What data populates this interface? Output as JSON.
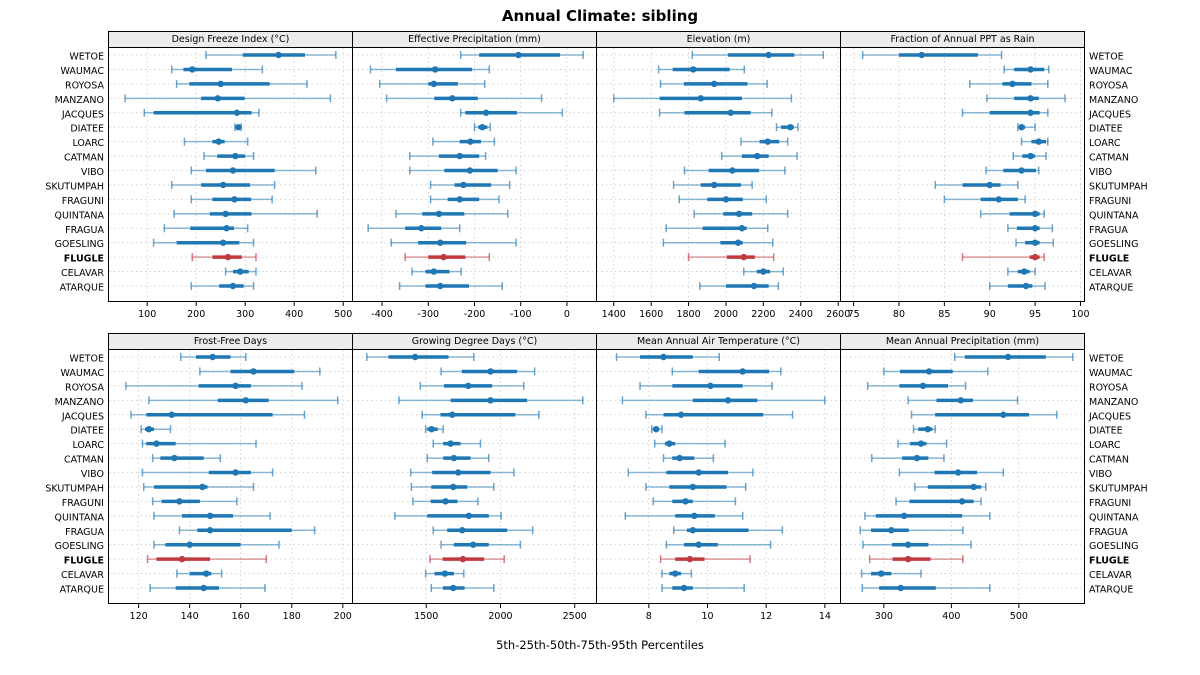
{
  "title": "Annual Climate: sibling",
  "caption": "5th-25th-50th-75th-95th Percentiles",
  "sites": [
    "WETOE",
    "WAUMAC",
    "ROYOSA",
    "MANZANO",
    "JACQUES",
    "DIATEE",
    "LOARC",
    "CATMAN",
    "VIBO",
    "SKUTUMPAH",
    "FRAGUNI",
    "QUINTANA",
    "FRAGUA",
    "GOESLING",
    "FLUGLE",
    "CELAVAR",
    "ATARQUE"
  ],
  "highlight_site": "FLUGLE",
  "percentiles": [
    5,
    25,
    50,
    75,
    95
  ],
  "colors": {
    "series": "#1f77b4",
    "highlight": "#c0393d",
    "strip_bg": "#ececec",
    "grid": "#c9c9c9",
    "border": "#000000"
  },
  "chart_data": [
    {
      "type": "dotplot-interval",
      "title": "Design Freeze Index (°C)",
      "xlim": [
        20,
        520
      ],
      "ticks": [
        100,
        200,
        300,
        400,
        500
      ],
      "rows": {
        "WETOE": [
          220,
          295,
          368,
          422,
          485
        ],
        "WAUMAC": [
          150,
          174,
          192,
          273,
          335
        ],
        "ROYOSA": [
          160,
          186,
          250,
          350,
          426
        ],
        "MANZANO": [
          55,
          210,
          244,
          299,
          474
        ],
        "JACQUES": [
          94,
          113,
          283,
          313,
          328
        ],
        "DIATEE": [
          279,
          283,
          286,
          289,
          292
        ],
        "LOARC": [
          176,
          233,
          246,
          258,
          305
        ],
        "CATMAN": [
          216,
          243,
          280,
          300,
          317
        ],
        "VIBO": [
          190,
          220,
          275,
          360,
          444
        ],
        "SKUTUMPAH": [
          150,
          210,
          255,
          310,
          360
        ],
        "FRAGUNI": [
          190,
          233,
          278,
          312,
          355
        ],
        "QUINTANA": [
          155,
          228,
          260,
          313,
          447
        ],
        "FRAGUA": [
          135,
          188,
          262,
          277,
          305
        ],
        "GOESLING": [
          113,
          160,
          255,
          288,
          317
        ],
        "FLUGLE": [
          192,
          233,
          265,
          293,
          322
        ],
        "CELAVAR": [
          260,
          275,
          290,
          307,
          322
        ],
        "ATARQUE": [
          190,
          247,
          275,
          297,
          317
        ]
      }
    },
    {
      "type": "dotplot-interval",
      "title": "Effective Precipitation (mm)",
      "xlim": [
        -465,
        65
      ],
      "ticks": [
        -400,
        -300,
        -200,
        -100,
        0
      ],
      "rows": {
        "WETOE": [
          -230,
          -190,
          -105,
          -15,
          35
        ],
        "WAUMAC": [
          -425,
          -370,
          -285,
          -205,
          -168
        ],
        "ROYOSA": [
          -405,
          -300,
          -288,
          -236,
          -178
        ],
        "MANZANO": [
          -390,
          -287,
          -248,
          -193,
          -55
        ],
        "JACQUES": [
          -230,
          -220,
          -175,
          -108,
          -10
        ],
        "DIATEE": [
          -200,
          -192,
          -183,
          -172,
          -166
        ],
        "LOARC": [
          -290,
          -232,
          -209,
          -186,
          -157
        ],
        "CATMAN": [
          -340,
          -277,
          -232,
          -190,
          -176
        ],
        "VIBO": [
          -340,
          -265,
          -210,
          -150,
          -110
        ],
        "SKUTUMPAH": [
          -295,
          -243,
          -224,
          -164,
          -124
        ],
        "FRAGUNI": [
          -295,
          -258,
          -232,
          -190,
          -147
        ],
        "QUINTANA": [
          -370,
          -313,
          -277,
          -222,
          -128
        ],
        "FRAGUA": [
          -430,
          -350,
          -315,
          -272,
          -232
        ],
        "GOESLING": [
          -380,
          -322,
          -274,
          -218,
          -110
        ],
        "FLUGLE": [
          -350,
          -300,
          -267,
          -220,
          -168
        ],
        "CELAVAR": [
          -335,
          -306,
          -288,
          -254,
          -229
        ],
        "ATARQUE": [
          -362,
          -306,
          -274,
          -212,
          -140
        ]
      }
    },
    {
      "type": "dotplot-interval",
      "title": "Elevation (m)",
      "xlim": [
        1305,
        2615
      ],
      "ticks": [
        1400,
        1600,
        1800,
        2000,
        2200,
        2400,
        2600
      ],
      "rows": {
        "WETOE": [
          1820,
          2010,
          2228,
          2365,
          2520
        ],
        "WAUMAC": [
          1640,
          1715,
          1825,
          2020,
          2098
        ],
        "ROYOSA": [
          1650,
          1775,
          1937,
          2115,
          2220
        ],
        "MANZANO": [
          1400,
          1645,
          1865,
          2085,
          2350
        ],
        "JACQUES": [
          1645,
          1778,
          2025,
          2132,
          2245
        ],
        "DIATEE": [
          2270,
          2295,
          2344,
          2363,
          2385
        ],
        "LOARC": [
          2080,
          2180,
          2223,
          2285,
          2330
        ],
        "CATMAN": [
          1977,
          2085,
          2167,
          2228,
          2380
        ],
        "VIBO": [
          1778,
          1907,
          2034,
          2176,
          2315
        ],
        "SKUTUMPAH": [
          1720,
          1865,
          1937,
          2080,
          2140
        ],
        "FRAGUNI": [
          1750,
          1900,
          2000,
          2090,
          2215
        ],
        "QUINTANA": [
          1830,
          1985,
          2070,
          2140,
          2330
        ],
        "FRAGUA": [
          1680,
          1875,
          2085,
          2110,
          2223
        ],
        "GOESLING": [
          1665,
          1970,
          2065,
          2090,
          2250
        ],
        "FLUGLE": [
          1800,
          2005,
          2095,
          2155,
          2255
        ],
        "CELAVAR": [
          2095,
          2165,
          2200,
          2236,
          2306
        ],
        "ATARQUE": [
          1860,
          2000,
          2150,
          2228,
          2280
        ]
      }
    },
    {
      "type": "dotplot-interval",
      "title": "Fraction of Annual PPT as Rain",
      "xlim": [
        73.5,
        100.5
      ],
      "ticks": [
        75,
        80,
        85,
        90,
        95,
        100
      ],
      "rows": {
        "WETOE": [
          76,
          80,
          82.5,
          88.7,
          91.3
        ],
        "WAUMAC": [
          91.6,
          92.7,
          94.5,
          96,
          96.5
        ],
        "ROYOSA": [
          87.8,
          91.4,
          92.5,
          94.6,
          96.4
        ],
        "MANZANO": [
          89.7,
          92.7,
          94.5,
          95.4,
          98.3
        ],
        "JACQUES": [
          87,
          90,
          94.5,
          95.5,
          96.4
        ],
        "DIATEE": [
          93.1,
          93.3,
          93.5,
          93.9,
          95
        ],
        "LOARC": [
          93.5,
          94.6,
          95.4,
          96.2,
          96.4
        ],
        "CATMAN": [
          92.6,
          93.6,
          94.5,
          95,
          96.2
        ],
        "VIBO": [
          89.6,
          91.5,
          93.5,
          95.1,
          95.4
        ],
        "SKUTUMPAH": [
          84,
          87,
          90,
          91.2,
          93.1
        ],
        "FRAGUNI": [
          85,
          89,
          91,
          93.1,
          93.9
        ],
        "QUINTANA": [
          89,
          92.2,
          95,
          95.5,
          96
        ],
        "FRAGUA": [
          92,
          93,
          95,
          95.5,
          96.9
        ],
        "GOESLING": [
          92.9,
          93.9,
          95,
          95.5,
          97
        ],
        "FLUGLE": [
          87,
          94.4,
          95,
          95.5,
          96
        ],
        "CELAVAR": [
          92,
          93.1,
          93.8,
          94.4,
          95
        ],
        "ATARQUE": [
          90,
          92,
          94,
          94.7,
          96.1
        ]
      }
    },
    {
      "type": "dotplot-interval",
      "title": "Frost-Free Days",
      "xlim": [
        108,
        204
      ],
      "ticks": [
        120,
        140,
        160,
        180,
        200
      ],
      "rows": {
        "WETOE": [
          136.5,
          142.5,
          149,
          156,
          162
        ],
        "WAUMAC": [
          144,
          156,
          165,
          181,
          191
        ],
        "ROYOSA": [
          115,
          143.5,
          158,
          164,
          184
        ],
        "MANZANO": [
          124,
          151,
          162,
          171,
          198
        ],
        "JACQUES": [
          117,
          123,
          133,
          172.5,
          185
        ],
        "DIATEE": [
          121,
          122.5,
          124,
          126,
          132.5
        ],
        "LOARC": [
          121.5,
          123,
          127,
          134.5,
          166
        ],
        "CATMAN": [
          125.5,
          128.5,
          134,
          145.5,
          152
        ],
        "VIBO": [
          121.5,
          147.5,
          158,
          164,
          172.5
        ],
        "SKUTUMPAH": [
          122,
          126,
          145,
          147,
          165
        ],
        "FRAGUNI": [
          125.5,
          129,
          136,
          144,
          158.5
        ],
        "QUINTANA": [
          126,
          137,
          148,
          157,
          171.5
        ],
        "FRAGUA": [
          136,
          143,
          148,
          180,
          189
        ],
        "GOESLING": [
          126,
          130.5,
          140,
          160,
          175
        ],
        "FLUGLE": [
          123.5,
          127,
          137,
          148,
          170
        ],
        "CELAVAR": [
          135,
          140,
          146.5,
          148.5,
          152.5
        ],
        "ATARQUE": [
          124.5,
          134.5,
          145.5,
          151.5,
          169.5
        ]
      }
    },
    {
      "type": "dotplot-interval",
      "title": "Growing Degree Days (°C)",
      "xlim": [
        1000,
        2650
      ],
      "ticks": [
        1500,
        2000,
        2500
      ],
      "rows": {
        "WETOE": [
          1100,
          1245,
          1425,
          1650,
          1820
        ],
        "WAUMAC": [
          1600,
          1740,
          1933,
          2112,
          2230
        ],
        "ROYOSA": [
          1460,
          1620,
          1783,
          1944,
          2157
        ],
        "MANZANO": [
          1316,
          1664,
          1933,
          2179,
          2554
        ],
        "JACQUES": [
          1473,
          1596,
          1675,
          2100,
          2258
        ],
        "DIATEE": [
          1496,
          1507,
          1536,
          1578,
          1614
        ],
        "LOARC": [
          1547,
          1614,
          1664,
          1731,
          1865
        ],
        "CATMAN": [
          1507,
          1614,
          1686,
          1798,
          1921
        ],
        "VIBO": [
          1395,
          1540,
          1715,
          1933,
          2090
        ],
        "SKUTUMPAH": [
          1400,
          1534,
          1682,
          1776,
          1955
        ],
        "FRAGUNI": [
          1410,
          1530,
          1630,
          1710,
          1848
        ],
        "QUINTANA": [
          1289,
          1507,
          1787,
          1921,
          2004
        ],
        "FRAGUA": [
          1547,
          1641,
          1742,
          2045,
          2217
        ],
        "GOESLING": [
          1600,
          1686,
          1816,
          1921,
          2134
        ],
        "FLUGLE": [
          1525,
          1610,
          1747,
          1890,
          2025
        ],
        "CELAVAR": [
          1496,
          1556,
          1626,
          1686,
          1753
        ],
        "ATARQUE": [
          1534,
          1612,
          1682,
          1758,
          1955
        ]
      }
    },
    {
      "type": "dotplot-interval",
      "title": "Mean Annual Air Temperature (°C)",
      "xlim": [
        6.2,
        14.55
      ],
      "ticks": [
        8,
        10,
        12,
        14
      ],
      "rows": {
        "WETOE": [
          6.9,
          7.7,
          8.5,
          9.5,
          10.4
        ],
        "WAUMAC": [
          8.8,
          9.7,
          11.2,
          12.1,
          12.5
        ],
        "ROYOSA": [
          7.7,
          8.8,
          10.1,
          11.2,
          12.2
        ],
        "MANZANO": [
          7.1,
          9.5,
          10.7,
          11.7,
          14
        ],
        "JACQUES": [
          7.9,
          8.5,
          9.1,
          11.9,
          12.9
        ],
        "DIATEE": [
          8.1,
          8.15,
          8.25,
          8.35,
          8.45
        ],
        "LOARC": [
          8.2,
          8.55,
          8.7,
          8.9,
          10.6
        ],
        "CATMAN": [
          8.5,
          8.8,
          9.05,
          9.55,
          10.2
        ],
        "VIBO": [
          7.3,
          8.6,
          9.7,
          10.7,
          11.55
        ],
        "SKUTUMPAH": [
          7.9,
          8.7,
          9.5,
          10.65,
          11.3
        ],
        "FRAGUNI": [
          8.15,
          8.8,
          9.25,
          9.5,
          10.95
        ],
        "QUINTANA": [
          7.2,
          8.9,
          9.55,
          10.25,
          11.2
        ],
        "FRAGUA": [
          8.85,
          9.3,
          9.5,
          11.4,
          12.55
        ],
        "GOESLING": [
          8.6,
          9.2,
          9.7,
          10.35,
          12.15
        ],
        "FLUGLE": [
          8.4,
          8.9,
          9.4,
          9.9,
          11.45
        ],
        "CELAVAR": [
          8.45,
          8.7,
          8.9,
          9.1,
          9.45
        ],
        "ATARQUE": [
          8.45,
          8.8,
          9.2,
          9.5,
          11.25
        ]
      }
    },
    {
      "type": "dotplot-interval",
      "title": "Mean Annual Precipitation (mm)",
      "xlim": [
        235,
        598
      ],
      "ticks": [
        300,
        400,
        500
      ],
      "rows": {
        "WETOE": [
          405,
          420,
          484,
          540,
          580
        ],
        "WAUMAC": [
          300,
          324,
          367,
          402,
          454
        ],
        "ROYOSA": [
          276,
          323,
          358,
          395,
          421
        ],
        "MANZANO": [
          336,
          378,
          414,
          432,
          498
        ],
        "JACQUES": [
          341,
          376,
          477,
          515,
          556
        ],
        "DIATEE": [
          344,
          351,
          365,
          372,
          376
        ],
        "LOARC": [
          321,
          339,
          355,
          363,
          393
        ],
        "CATMAN": [
          282,
          327,
          349,
          366,
          389
        ],
        "VIBO": [
          323,
          375,
          410,
          438,
          477
        ],
        "SKUTUMPAH": [
          346,
          365,
          433,
          444,
          451
        ],
        "FRAGUNI": [
          318,
          338,
          416,
          433,
          444
        ],
        "QUINTANA": [
          272,
          288,
          330,
          416,
          457
        ],
        "FRAGUA": [
          265,
          281,
          311,
          337,
          417
        ],
        "GOESLING": [
          269,
          312,
          336,
          366,
          429
        ],
        "FLUGLE": [
          279,
          313,
          336,
          369,
          417
        ],
        "CELAVAR": [
          267,
          281,
          296,
          311,
          355
        ],
        "ATARQUE": [
          268,
          293,
          325,
          377,
          457
        ]
      }
    }
  ]
}
